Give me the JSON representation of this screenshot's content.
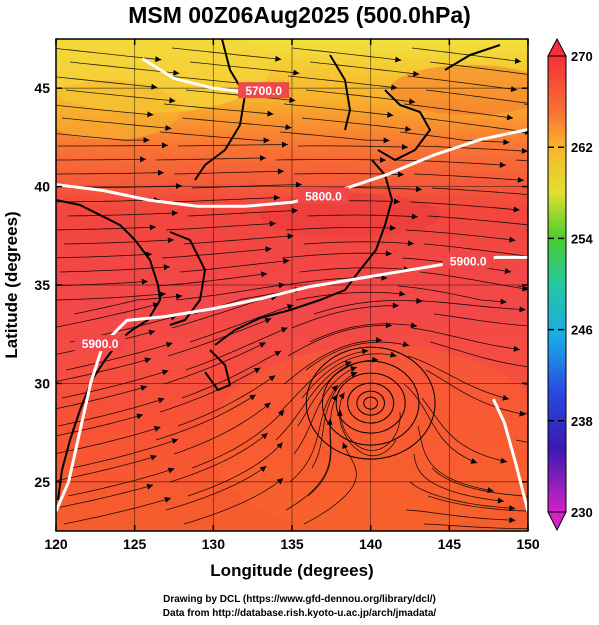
{
  "title": "MSM 00Z06Aug2025 (500.0hPa)",
  "x_axis": {
    "label": "Longitude (degrees)",
    "ticks": [
      "120",
      "125",
      "130",
      "135",
      "140",
      "145",
      "150"
    ]
  },
  "y_axis": {
    "label": "Latitude  (degrees)",
    "ticks": [
      "25",
      "30",
      "35",
      "40",
      "45"
    ]
  },
  "colorbar": {
    "ticks": [
      "270",
      "262",
      "254",
      "246",
      "238",
      "230"
    ]
  },
  "contour_labels": [
    "5700.0",
    "5800.0",
    "5900.0",
    "5900.0"
  ],
  "credits": {
    "line1": "Drawing by DCL (https://www.gfd-dennou.org/library/dcl/)",
    "line2": "Data from http://database.rish.kyoto-u.ac.jp/arch/jmadata/"
  },
  "chart_data": {
    "type": "heatmap",
    "title": "MSM 00Z06Aug2025 (500.0hPa)",
    "xlabel": "Longitude (degrees)",
    "ylabel": "Latitude  (degrees)",
    "xlim": [
      120,
      150
    ],
    "ylim": [
      22.5,
      47.5
    ],
    "colorbar_range": [
      230,
      270
    ],
    "contours": [
      {
        "label": "5700.0",
        "points": [
          [
            125.5,
            46.5
          ],
          [
            127.5,
            45.5
          ],
          [
            130,
            45.0
          ],
          [
            132,
            44.8
          ],
          [
            134,
            44.9
          ]
        ]
      },
      {
        "label": "5800.0",
        "points": [
          [
            120,
            40.1
          ],
          [
            123,
            39.8
          ],
          [
            126,
            39.3
          ],
          [
            129,
            39.0
          ],
          [
            132,
            39.0
          ],
          [
            135,
            39.2
          ],
          [
            138,
            39.8
          ],
          [
            141,
            40.6
          ],
          [
            144,
            41.6
          ],
          [
            147,
            42.4
          ],
          [
            150,
            42.9
          ]
        ]
      },
      {
        "label": "5900.0",
        "points": [
          [
            120,
            23.5
          ],
          [
            120.8,
            25
          ],
          [
            121.5,
            27.5
          ],
          [
            122.2,
            30
          ],
          [
            123,
            32
          ],
          [
            124.5,
            33.2
          ],
          [
            127,
            33.4
          ],
          [
            130,
            33.8
          ],
          [
            133,
            34.3
          ],
          [
            136,
            34.9
          ],
          [
            139,
            35.3
          ],
          [
            142,
            35.7
          ],
          [
            145,
            36.1
          ],
          [
            148,
            36.4
          ],
          [
            150,
            36.4
          ]
        ]
      },
      {
        "label": "",
        "points": [
          [
            150,
            23.5
          ],
          [
            149.2,
            26
          ],
          [
            148.5,
            28
          ],
          [
            147.8,
            29.2
          ]
        ]
      }
    ],
    "circulation_center": [
      140,
      29
    ]
  }
}
